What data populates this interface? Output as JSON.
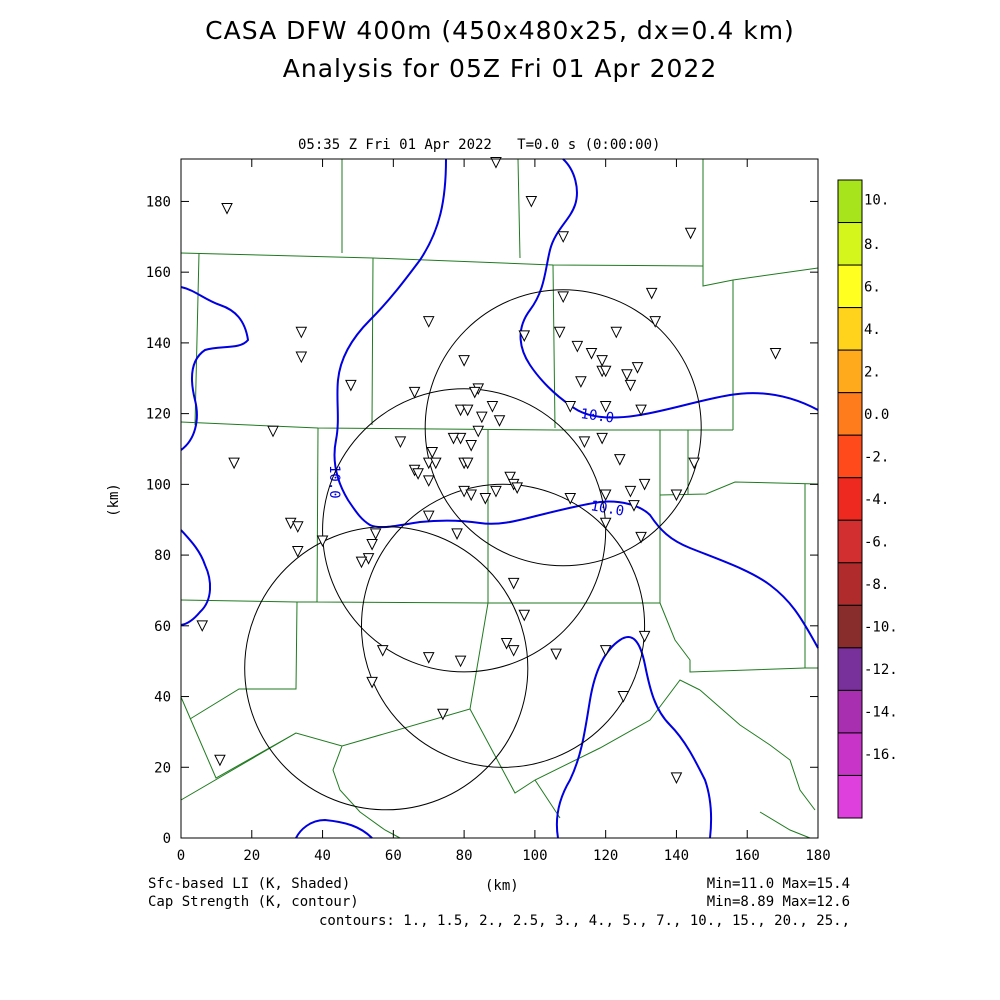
{
  "title_line1": "CASA DFW 400m (450x480x25, dx=0.4 km)",
  "title_line2": "Analysis for 05Z Fri 01 Apr 2022",
  "subtitle": "05:35 Z Fri 01 Apr 2022   T=0.0 s (0:00:00)",
  "axes": {
    "ylabel": "(km)",
    "xlabel": "(km)",
    "xticks": [
      "0",
      "20",
      "40",
      "60",
      "80",
      "100",
      "120",
      "140",
      "160",
      "180"
    ],
    "yticks": [
      "0",
      "20",
      "40",
      "60",
      "80",
      "100",
      "120",
      "140",
      "160",
      "180"
    ],
    "xlim": [
      0,
      180
    ],
    "ylim": [
      0,
      192
    ]
  },
  "colorbar": {
    "labels": [
      "10.",
      "8.",
      "6.",
      "4.",
      "2.",
      "0.0",
      "-2.",
      "-4.",
      "-6.",
      "-8.",
      "-10.",
      "-12.",
      "-14.",
      "-16."
    ],
    "colors": [
      "#a8e41c",
      "#d4f61c",
      "#ffff20",
      "#ffd21c",
      "#ffaa1c",
      "#ff7c1c",
      "#ff4a1c",
      "#ee2a20",
      "#d23030",
      "#b02c2c",
      "#882c2c",
      "#78309a",
      "#a830b0",
      "#c833c8",
      "#de40de"
    ]
  },
  "footer": {
    "left1": "Sfc-based LI (K, Shaded)",
    "left2": "Cap Strength (K, contour)",
    "center": "(km)",
    "right1": "Min=11.0 Max=15.4",
    "right2": "Min=8.89 Max=12.6",
    "contours": "contours: 1., 1.5, 2., 2.5, 3., 4., 5., 7., 10., 15., 20., 25.,"
  },
  "contour_labels": [
    "10.0",
    "10.0",
    "10.0"
  ],
  "radar_rings": [
    {
      "x": 58,
      "y": 48,
      "r": 40
    },
    {
      "x": 80,
      "y": 87,
      "r": 40
    },
    {
      "x": 108,
      "y": 116,
      "r": 39
    },
    {
      "x": 91,
      "y": 60,
      "r": 40
    }
  ],
  "stations": [
    [
      13,
      178
    ],
    [
      89,
      191
    ],
    [
      99,
      180
    ],
    [
      108,
      170
    ],
    [
      144,
      171
    ],
    [
      133,
      154
    ],
    [
      108,
      153
    ],
    [
      34,
      143
    ],
    [
      70,
      146
    ],
    [
      97,
      142
    ],
    [
      107,
      143
    ],
    [
      112,
      139
    ],
    [
      116,
      137
    ],
    [
      119,
      135
    ],
    [
      123,
      143
    ],
    [
      134,
      146
    ],
    [
      168,
      137
    ],
    [
      34,
      136
    ],
    [
      80,
      135
    ],
    [
      119,
      132
    ],
    [
      126,
      131
    ],
    [
      129,
      133
    ],
    [
      120,
      132
    ],
    [
      113,
      129
    ],
    [
      127,
      128
    ],
    [
      48,
      128
    ],
    [
      66,
      126
    ],
    [
      84,
      127
    ],
    [
      83,
      126
    ],
    [
      88,
      122
    ],
    [
      79,
      121
    ],
    [
      81,
      121
    ],
    [
      85,
      119
    ],
    [
      110,
      122
    ],
    [
      120,
      122
    ],
    [
      90,
      118
    ],
    [
      130,
      121
    ],
    [
      26,
      115
    ],
    [
      84,
      115
    ],
    [
      79,
      113
    ],
    [
      114,
      112
    ],
    [
      119,
      113
    ],
    [
      62,
      112
    ],
    [
      77,
      113
    ],
    [
      82,
      111
    ],
    [
      124,
      107
    ],
    [
      71,
      109
    ],
    [
      80,
      106
    ],
    [
      81,
      106
    ],
    [
      15,
      106
    ],
    [
      70,
      106
    ],
    [
      72,
      106
    ],
    [
      66,
      104
    ],
    [
      67,
      103
    ],
    [
      70,
      101
    ],
    [
      93,
      102
    ],
    [
      145,
      106
    ],
    [
      94,
      100
    ],
    [
      95,
      99
    ],
    [
      89,
      98
    ],
    [
      80,
      98
    ],
    [
      82,
      97
    ],
    [
      86,
      96
    ],
    [
      127,
      98
    ],
    [
      120,
      97
    ],
    [
      110,
      96
    ],
    [
      131,
      100
    ],
    [
      140,
      97
    ],
    [
      128,
      94
    ],
    [
      31,
      89
    ],
    [
      33,
      88
    ],
    [
      70,
      91
    ],
    [
      120,
      89
    ],
    [
      78,
      86
    ],
    [
      55,
      86
    ],
    [
      54,
      83
    ],
    [
      33,
      81
    ],
    [
      40,
      84
    ],
    [
      53,
      79
    ],
    [
      51,
      78
    ],
    [
      130,
      85
    ],
    [
      94,
      72
    ],
    [
      97,
      63
    ],
    [
      6,
      60
    ],
    [
      131,
      57
    ],
    [
      92,
      55
    ],
    [
      94,
      53
    ],
    [
      106,
      52
    ],
    [
      57,
      53
    ],
    [
      70,
      51
    ],
    [
      79,
      50
    ],
    [
      120,
      53
    ],
    [
      54,
      44
    ],
    [
      125,
      40
    ],
    [
      74,
      35
    ],
    [
      11,
      22
    ],
    [
      140,
      17
    ]
  ]
}
